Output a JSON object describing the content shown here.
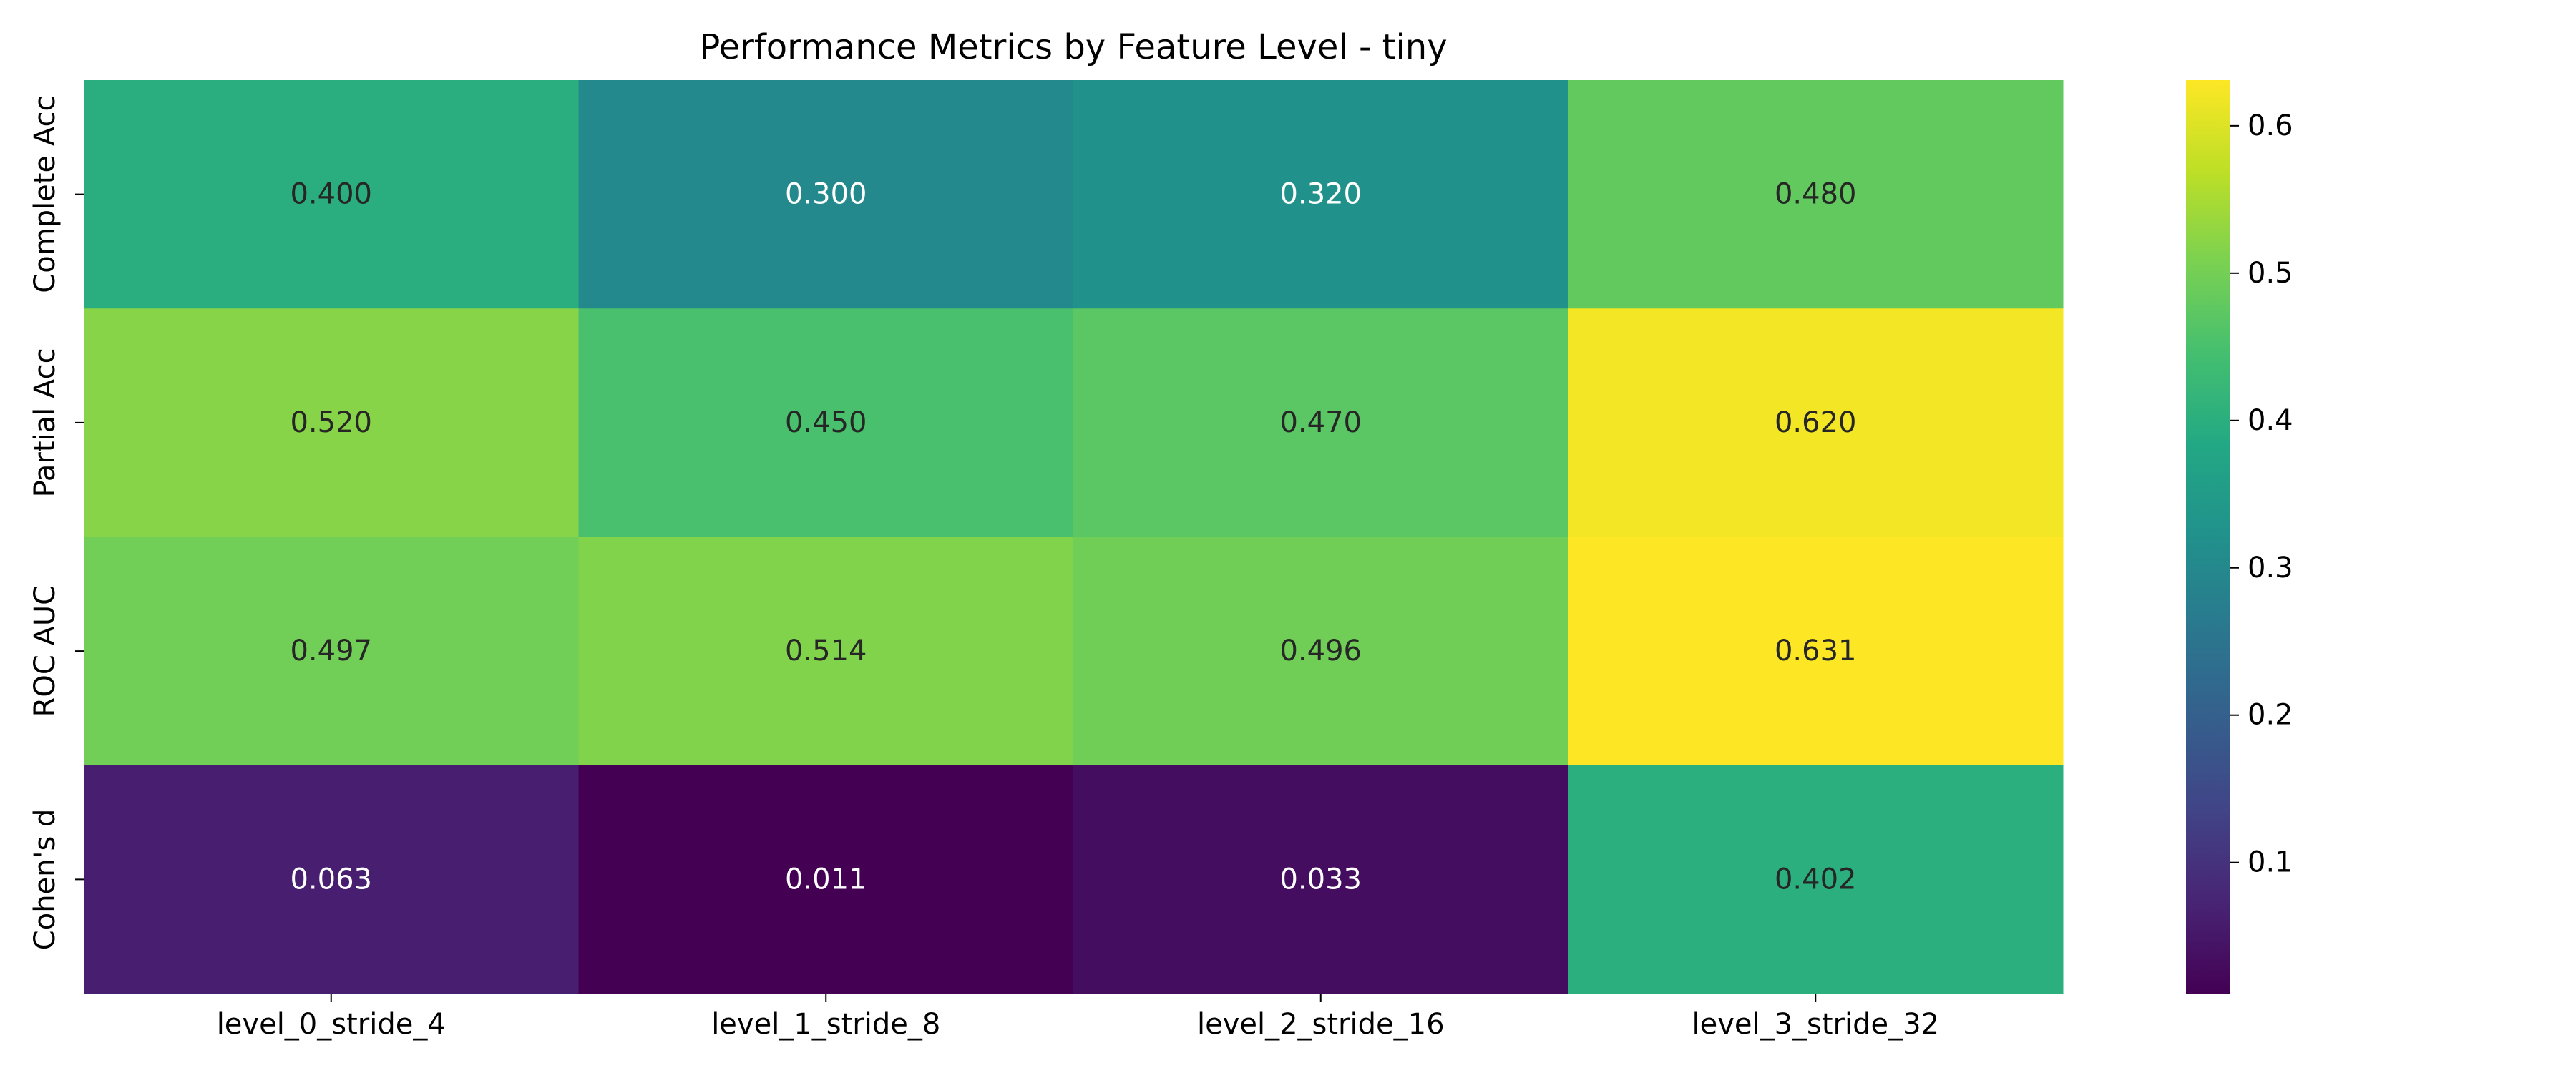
{
  "chart_data": {
    "type": "heatmap",
    "title": "Performance Metrics by Feature Level - tiny",
    "x_categories": [
      "level_0_stride_4",
      "level_1_stride_8",
      "level_2_stride_16",
      "level_3_stride_32"
    ],
    "y_categories": [
      "Complete Acc",
      "Partial Acc",
      "ROC AUC",
      "Cohen's d"
    ],
    "values": [
      [
        0.4,
        0.3,
        0.32,
        0.48
      ],
      [
        0.52,
        0.45,
        0.47,
        0.62
      ],
      [
        0.497,
        0.514,
        0.496,
        0.631
      ],
      [
        0.063,
        0.011,
        0.033,
        0.402
      ]
    ],
    "value_labels": [
      [
        "0.400",
        "0.300",
        "0.320",
        "0.480"
      ],
      [
        "0.520",
        "0.450",
        "0.470",
        "0.620"
      ],
      [
        "0.497",
        "0.514",
        "0.496",
        "0.631"
      ],
      [
        "0.063",
        "0.011",
        "0.033",
        "0.402"
      ]
    ],
    "colormap": "viridis",
    "vmin": 0.011,
    "vmax": 0.631,
    "colorbar_ticks": [
      0.1,
      0.2,
      0.3,
      0.4,
      0.5,
      0.6
    ],
    "colorbar_tick_labels": [
      "0.1",
      "0.2",
      "0.3",
      "0.4",
      "0.5",
      "0.6"
    ],
    "colorbar_position": "right",
    "grid": false
  }
}
